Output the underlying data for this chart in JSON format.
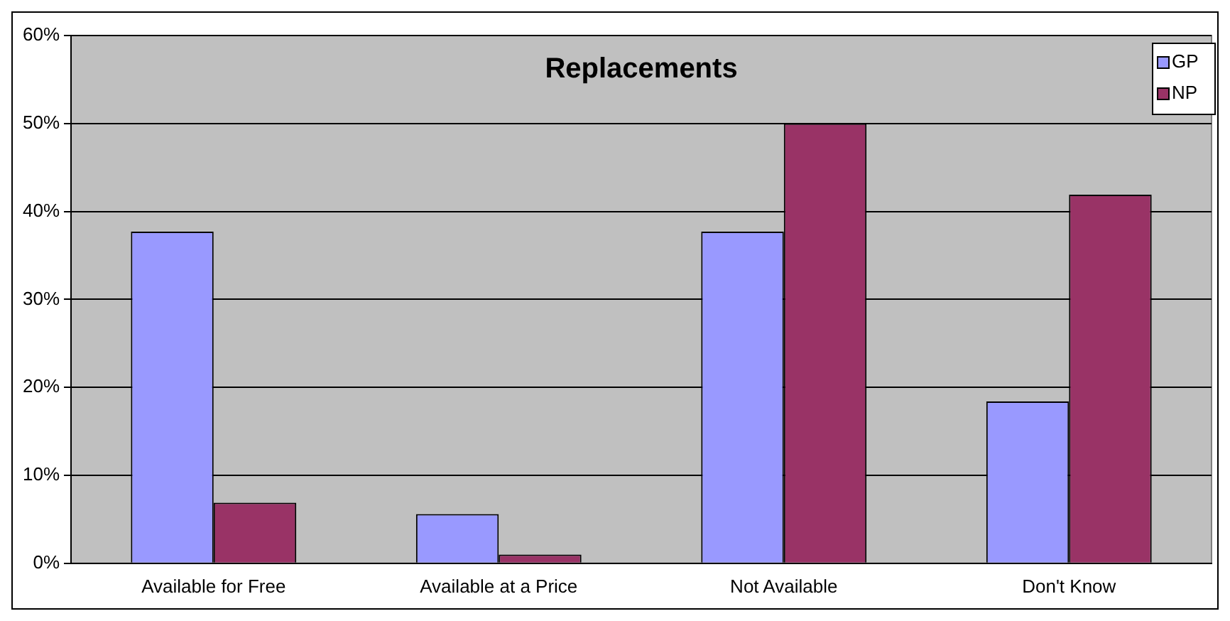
{
  "chart_data": {
    "type": "bar",
    "title": "Replacements",
    "categories": [
      "Available for Free",
      "Available at a Price",
      "Not Available",
      "Don't Know"
    ],
    "series": [
      {
        "name": "GP",
        "color": "#9999ff",
        "values": [
          37.7,
          5.6,
          37.7,
          18.4
        ]
      },
      {
        "name": "NP",
        "color": "#993366",
        "values": [
          6.9,
          1.0,
          50,
          41.9
        ]
      }
    ],
    "ylim": [
      0,
      60
    ],
    "yticks": [
      {
        "value": 0,
        "label": "0%"
      },
      {
        "value": 10,
        "label": "10%"
      },
      {
        "value": 20,
        "label": "20%"
      },
      {
        "value": 30,
        "label": "30%"
      },
      {
        "value": 40,
        "label": "40%"
      },
      {
        "value": 50,
        "label": "50%"
      },
      {
        "value": 60,
        "label": "60%"
      }
    ],
    "grid": "y",
    "legend": "top right"
  }
}
